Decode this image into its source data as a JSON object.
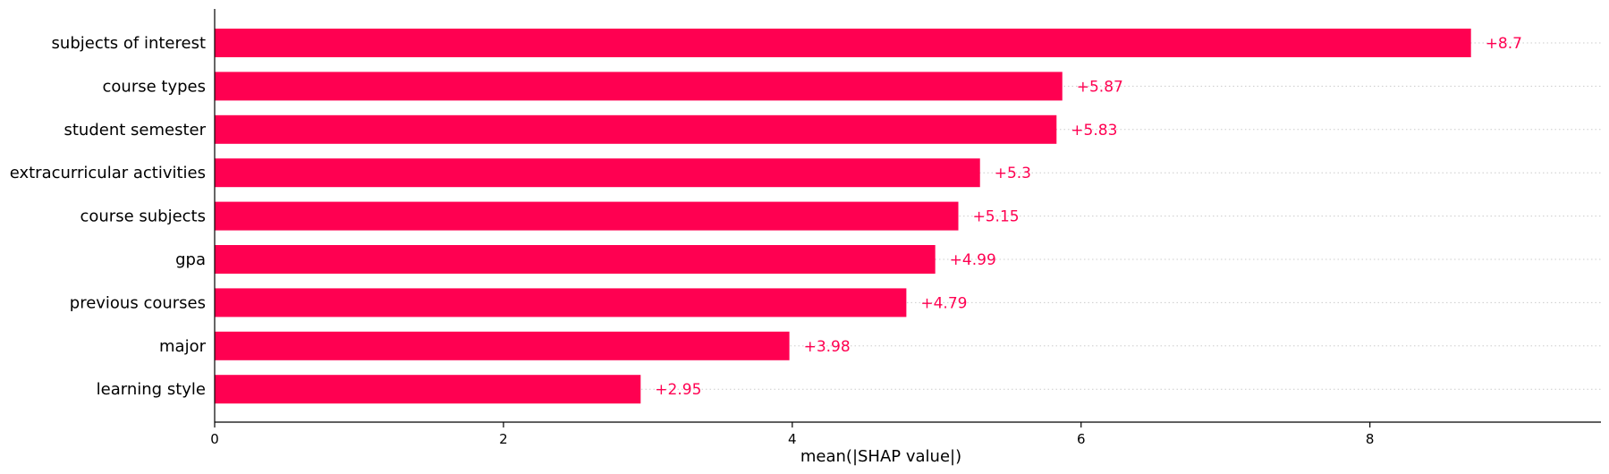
{
  "chart_data": {
    "type": "bar",
    "orientation": "horizontal",
    "categories": [
      "subjects of interest",
      "course types",
      "student semester",
      "extracurricular activities",
      "course subjects",
      "gpa",
      "previous courses",
      "major",
      "learning style"
    ],
    "values": [
      8.7,
      5.87,
      5.83,
      5.3,
      5.15,
      4.99,
      4.79,
      3.98,
      2.95
    ],
    "value_labels": [
      "+8.7",
      "+5.87",
      "+5.83",
      "+5.3",
      "+5.15",
      "+4.99",
      "+4.79",
      "+3.98",
      "+2.95"
    ],
    "xlabel": "mean(|SHAP value|)",
    "xlim": [
      0,
      9.6
    ],
    "x_ticks": [
      0,
      2,
      4,
      6,
      8
    ],
    "x_tick_labels": [
      "0",
      "2",
      "4",
      "6",
      "8"
    ],
    "grid": "dotted horizontal lines per bar",
    "bar_color": "#ff0051",
    "label_color": "#ff0051"
  }
}
